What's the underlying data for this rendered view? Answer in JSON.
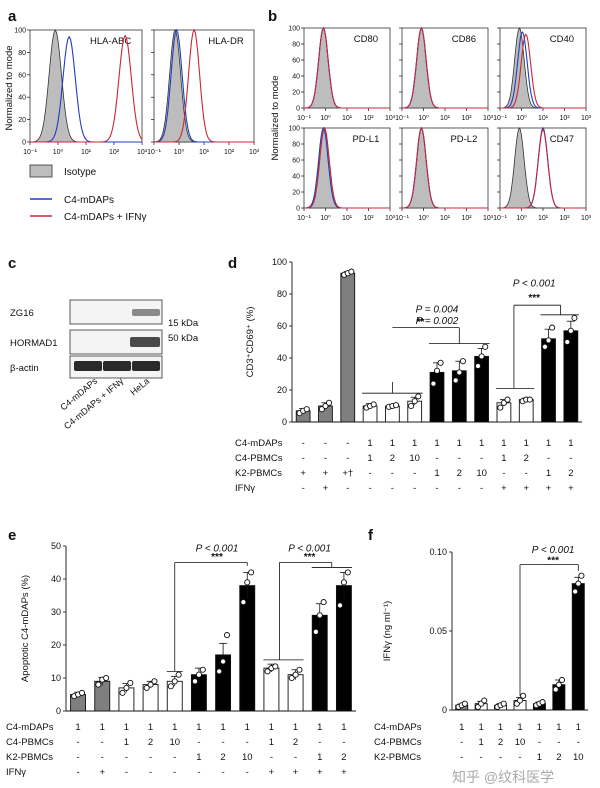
{
  "panel_letters": {
    "a": "a",
    "b": "b",
    "c": "c",
    "d": "d",
    "e": "e",
    "f": "f"
  },
  "hist_ylabel": "Normalized to mode",
  "hist_yticks": [
    "100",
    "80",
    "60",
    "40",
    "20",
    "0"
  ],
  "hist_xticks": [
    "10⁻¹",
    "10⁰",
    "10¹",
    "10²",
    "10³"
  ],
  "legend": {
    "isotype": "Isotype",
    "c4": "C4-mDAPs",
    "c4ifn": "C4-mDAPs + IFNγ"
  },
  "colors": {
    "isotype_fill": "#bdbdbd",
    "c4": "#1f3fbf",
    "c4ifn": "#c8283a",
    "grey_bar": "#7f7f7f",
    "black_bar": "#000000"
  },
  "blot": {
    "rows": [
      "ZG16",
      "HORMAD1",
      "β-actin"
    ],
    "markers": [
      "15 kDa",
      "50 kDa"
    ],
    "lanes": [
      "C4-mDAPs",
      "C4-mDAPs + IFNγ",
      "HeLa"
    ]
  },
  "watermark": "知乎 @纹科医学",
  "chart_data": [
    {
      "panel": "a",
      "type": "area",
      "title": "HLA-ABC",
      "xlim": [
        "10⁻¹",
        "10³"
      ],
      "ylim": [
        0,
        100
      ],
      "xscale": "log",
      "series": [
        {
          "name": "Isotype",
          "peak_x": 0.8,
          "peak_y": 100
        },
        {
          "name": "C4-mDAPs",
          "peak_x": 2.5,
          "peak_y": 94
        },
        {
          "name": "C4-mDAPs + IFNγ",
          "peak_x": 250,
          "peak_y": 95
        }
      ]
    },
    {
      "panel": "a",
      "type": "area",
      "title": "HLA-DR",
      "xlim": [
        "10⁻¹",
        "10³"
      ],
      "ylim": [
        0,
        100
      ],
      "xscale": "log",
      "series": [
        {
          "name": "Isotype",
          "peak_x": 0.7,
          "peak_y": 100
        },
        {
          "name": "C4-mDAPs",
          "peak_x": 0.8,
          "peak_y": 100
        },
        {
          "name": "C4-mDAPs + IFNγ",
          "peak_x": 4,
          "peak_y": 100
        }
      ]
    },
    {
      "panel": "b",
      "type": "area",
      "title": "CD80",
      "xlim": [
        "10⁻¹",
        "10³"
      ],
      "ylim": [
        0,
        100
      ],
      "xscale": "log",
      "series": [
        {
          "name": "Isotype",
          "peak_x": 0.8,
          "peak_y": 100
        },
        {
          "name": "C4-mDAPs",
          "peak_x": 0.8,
          "peak_y": 100
        },
        {
          "name": "C4-mDAPs + IFNγ",
          "peak_x": 0.8,
          "peak_y": 100
        }
      ]
    },
    {
      "panel": "b",
      "type": "area",
      "title": "CD86",
      "xlim": [
        "10⁻¹",
        "10³"
      ],
      "ylim": [
        0,
        100
      ],
      "xscale": "log",
      "series": [
        {
          "name": "Isotype",
          "peak_x": 0.8,
          "peak_y": 100
        },
        {
          "name": "C4-mDAPs",
          "peak_x": 0.8,
          "peak_y": 100
        },
        {
          "name": "C4-mDAPs + IFNγ",
          "peak_x": 0.8,
          "peak_y": 100
        }
      ]
    },
    {
      "panel": "b",
      "type": "area",
      "title": "CD40",
      "xlim": [
        "10⁻¹",
        "10³"
      ],
      "ylim": [
        0,
        100
      ],
      "xscale": "log",
      "series": [
        {
          "name": "Isotype",
          "peak_x": 0.8,
          "peak_y": 100
        },
        {
          "name": "C4-mDAPs",
          "peak_x": 1.1,
          "peak_y": 95
        },
        {
          "name": "C4-mDAPs + IFNγ",
          "peak_x": 1.6,
          "peak_y": 92
        }
      ]
    },
    {
      "panel": "b",
      "type": "area",
      "title": "PD-L1",
      "xlim": [
        "10⁻¹",
        "10³"
      ],
      "ylim": [
        0,
        100
      ],
      "xscale": "log",
      "series": [
        {
          "name": "Isotype",
          "peak_x": 0.8,
          "peak_y": 100
        },
        {
          "name": "C4-mDAPs",
          "peak_x": 0.8,
          "peak_y": 100
        },
        {
          "name": "C4-mDAPs + IFNγ",
          "peak_x": 0.9,
          "peak_y": 100
        }
      ]
    },
    {
      "panel": "b",
      "type": "area",
      "title": "PD-L2",
      "xlim": [
        "10⁻¹",
        "10³"
      ],
      "ylim": [
        0,
        100
      ],
      "xscale": "log",
      "series": [
        {
          "name": "Isotype",
          "peak_x": 0.8,
          "peak_y": 100
        },
        {
          "name": "C4-mDAPs",
          "peak_x": 0.8,
          "peak_y": 100
        },
        {
          "name": "C4-mDAPs + IFNγ",
          "peak_x": 0.8,
          "peak_y": 100
        }
      ]
    },
    {
      "panel": "b",
      "type": "area",
      "title": "CD47",
      "xlim": [
        "10⁻¹",
        "10³"
      ],
      "ylim": [
        0,
        100
      ],
      "xscale": "log",
      "series": [
        {
          "name": "Isotype",
          "peak_x": 0.8,
          "peak_y": 100
        },
        {
          "name": "C4-mDAPs",
          "peak_x": 10,
          "peak_y": 100
        },
        {
          "name": "C4-mDAPs + IFNγ",
          "peak_x": 10,
          "peak_y": 98
        }
      ]
    },
    {
      "panel": "d",
      "type": "bar",
      "ylabel": "CD3⁺CD69⁺ (%)",
      "ylim": [
        0,
        100
      ],
      "yticks": [
        0,
        20,
        40,
        60,
        80,
        100
      ],
      "values": [
        7,
        10,
        93,
        10,
        10,
        13,
        31,
        32,
        41,
        12,
        14,
        52,
        57
      ],
      "errors": [
        1.5,
        2,
        1,
        1.5,
        1,
        2.5,
        6,
        6,
        5,
        2,
        1,
        6,
        6
      ],
      "fills": [
        "grey",
        "grey",
        "grey",
        "white",
        "white",
        "white",
        "black",
        "black",
        "black",
        "white",
        "white",
        "black",
        "black"
      ],
      "points": [
        [
          5.5,
          7,
          8
        ],
        [
          8,
          10,
          12
        ],
        [
          92,
          93,
          94
        ],
        [
          9,
          10,
          11
        ],
        [
          9.5,
          10,
          10.5
        ],
        [
          10,
          13,
          16
        ],
        [
          24,
          32,
          37
        ],
        [
          26,
          31,
          38
        ],
        [
          35,
          41,
          47
        ],
        [
          9,
          12,
          14
        ],
        [
          13,
          14,
          14
        ],
        [
          47,
          51,
          59
        ],
        [
          50,
          57,
          65
        ]
      ],
      "row_labels": [
        "C4-mDAPs",
        "C4-PBMCs",
        "K2-PBMCs",
        "IFNγ"
      ],
      "row_values": [
        [
          "-",
          "-",
          "-",
          "1",
          "1",
          "1",
          "1",
          "1",
          "1",
          "1",
          "1",
          "1",
          "1"
        ],
        [
          "-",
          "-",
          "-",
          "1",
          "2",
          "10",
          "-",
          "-",
          "-",
          "1",
          "2",
          "-",
          "-"
        ],
        [
          "+",
          "+",
          "+†",
          "-",
          "-",
          "-",
          "1",
          "2",
          "10",
          "-",
          "-",
          "1",
          "2"
        ],
        [
          "-",
          "+",
          "-",
          "-",
          "-",
          "-",
          "-",
          "-",
          "-",
          "+",
          "+",
          "+",
          "+"
        ]
      ],
      "annotations": [
        "P = 0.004",
        "P = 0.002",
        "**",
        "P < 0.001",
        "***"
      ]
    },
    {
      "panel": "e",
      "type": "bar",
      "ylabel": "Apoptotic C4-mDAPs (%)",
      "ylim": [
        0,
        50
      ],
      "yticks": [
        0,
        10,
        20,
        30,
        40,
        50
      ],
      "values": [
        5,
        9,
        7,
        8,
        9,
        11,
        17,
        38,
        13,
        11,
        29,
        38
      ],
      "errors": [
        0.7,
        1.2,
        1.3,
        1,
        1.5,
        2,
        3.5,
        4,
        1.2,
        1.5,
        3.5,
        4
      ],
      "fills": [
        "grey",
        "grey",
        "white",
        "white",
        "white",
        "black",
        "black",
        "black",
        "white",
        "white",
        "black",
        "black"
      ],
      "points": [
        [
          4.5,
          5,
          5.5
        ],
        [
          8,
          9.5,
          10
        ],
        [
          5.5,
          7,
          8.5
        ],
        [
          7,
          8,
          9
        ],
        [
          7.5,
          9,
          11
        ],
        [
          9,
          11,
          12.5
        ],
        [
          12,
          15,
          23
        ],
        [
          33,
          39,
          42
        ],
        [
          12,
          13,
          13.5
        ],
        [
          10,
          11,
          12.5
        ],
        [
          24,
          29,
          33
        ],
        [
          32,
          39,
          42
        ]
      ],
      "row_labels": [
        "C4-mDAPs",
        "C4-PBMCs",
        "K2-PBMCs",
        "IFNγ"
      ],
      "row_values": [
        [
          "1",
          "1",
          "1",
          "1",
          "1",
          "1",
          "1",
          "1",
          "1",
          "1",
          "1",
          "1"
        ],
        [
          "-",
          "-",
          "1",
          "2",
          "10",
          "-",
          "-",
          "-",
          "1",
          "2",
          "-",
          "-"
        ],
        [
          "-",
          "-",
          "-",
          "-",
          "-",
          "1",
          "2",
          "10",
          "-",
          "-",
          "1",
          "2"
        ],
        [
          "-",
          "+",
          "-",
          "-",
          "-",
          "-",
          "-",
          "-",
          "+",
          "+",
          "+",
          "+"
        ]
      ],
      "annotations": [
        "P < 0.001",
        "***",
        "P < 0.001",
        "***"
      ]
    },
    {
      "panel": "f",
      "type": "bar",
      "ylabel": "IFNγ (ng ml⁻¹)",
      "ylim": [
        0,
        0.1
      ],
      "yticks": [
        "0",
        "0.05",
        "0.10"
      ],
      "values": [
        0.003,
        0.004,
        0.003,
        0.006,
        0.004,
        0.016,
        0.08
      ],
      "errors": [
        0.0008,
        0.0015,
        0.001,
        0.002,
        0.001,
        0.003,
        0.004
      ],
      "fills": [
        "grey",
        "white",
        "white",
        "white",
        "black",
        "black",
        "black"
      ],
      "points": [
        [
          0.002,
          0.003,
          0.004
        ],
        [
          0.002,
          0.004,
          0.006
        ],
        [
          0.002,
          0.003,
          0.004
        ],
        [
          0.004,
          0.006,
          0.009
        ],
        [
          0.003,
          0.004,
          0.005
        ],
        [
          0.013,
          0.016,
          0.019
        ],
        [
          0.075,
          0.08,
          0.085
        ]
      ],
      "row_labels": [
        "C4-mDAPs",
        "C4-PBMCs",
        "K2-PBMCs"
      ],
      "row_values": [
        [
          "1",
          "1",
          "1",
          "1",
          "1",
          "1",
          "1"
        ],
        [
          "-",
          "1",
          "2",
          "10",
          "-",
          "-",
          "-"
        ],
        [
          "-",
          "-",
          "-",
          "-",
          "1",
          "2",
          "10"
        ]
      ],
      "annotations": [
        "P < 0.001",
        "***"
      ]
    }
  ]
}
